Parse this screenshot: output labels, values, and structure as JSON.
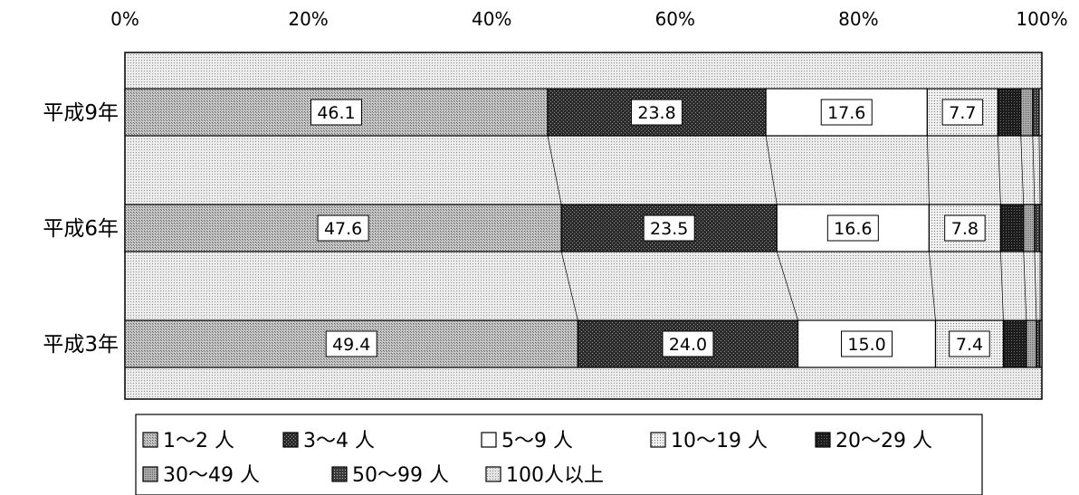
{
  "chart_data": {
    "type": "bar",
    "orientation": "horizontal",
    "stacked": "percent",
    "categories": [
      "平成9年",
      "平成6年",
      "平成3年"
    ],
    "x_ticks": [
      "0%",
      "20%",
      "40%",
      "60%",
      "80%",
      "100%"
    ],
    "xlim": [
      0,
      100
    ],
    "series": [
      {
        "name": "1～2 人",
        "values": [
          46.1,
          47.6,
          49.4
        ],
        "labels": [
          "46.1",
          "47.6",
          "49.4"
        ]
      },
      {
        "name": "3～4 人",
        "values": [
          23.8,
          23.5,
          24.0
        ],
        "labels": [
          "23.8",
          "23.5",
          "24.0"
        ]
      },
      {
        "name": "5～9 人",
        "values": [
          17.6,
          16.6,
          15.0
        ],
        "labels": [
          "17.6",
          "16.6",
          "15.0"
        ]
      },
      {
        "name": "10～19 人",
        "values": [
          7.7,
          7.8,
          7.4
        ],
        "labels": [
          "7.7",
          "7.8",
          "7.4"
        ]
      },
      {
        "name": "20～29 人",
        "values": [
          2.5,
          2.5,
          2.5
        ]
      },
      {
        "name": "30～49 人",
        "values": [
          1.3,
          1.2,
          1.1
        ]
      },
      {
        "name": "50～99 人",
        "values": [
          0.7,
          0.6,
          0.4
        ]
      },
      {
        "name": "100人以上",
        "values": [
          0.3,
          0.2,
          0.2
        ]
      }
    ],
    "legend_position": "bottom",
    "grid": false
  },
  "colors": {
    "1～2 人": "#bdbdbd",
    "3～4 人": "#2f2f2f",
    "5～9 人": "#ffffff",
    "10～19 人": "#e2e2e2",
    "20～29 人": "#1a1a1a",
    "30～49 人": "#a8a8a8",
    "50～99 人": "#3a3a3a",
    "100人以上": "#d6d6d6"
  }
}
